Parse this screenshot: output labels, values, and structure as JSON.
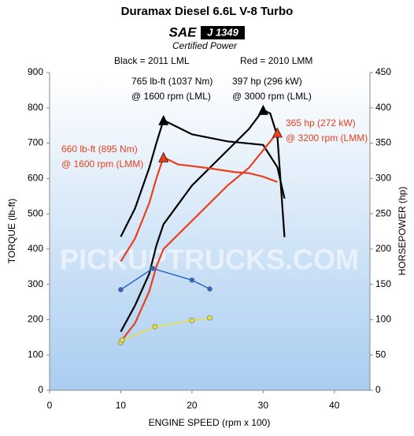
{
  "chart_data": {
    "type": "line",
    "title": "Duramax Diesel 6.6L V-8 Turbo",
    "logo": {
      "brand": "SAE",
      "code": "J 1349",
      "caption": "Certified Power"
    },
    "subtitles": [
      "Black = 2011 LML",
      "Red = 2010 LMM"
    ],
    "watermark": "PICKUPTRUCKS.COM",
    "xlabel": "ENGINE SPEED (rpm x 100)",
    "ylabel": "TORQUE (lb-ft)",
    "y2label": "HORSEPOWER (hp)",
    "xlim": [
      0,
      45
    ],
    "xticks": [
      0,
      10,
      20,
      30,
      40
    ],
    "ylim": [
      0,
      900
    ],
    "yticks": [
      0,
      100,
      200,
      300,
      400,
      500,
      600,
      700,
      800,
      900
    ],
    "y2lim": [
      0,
      450
    ],
    "y2ticks": [
      0,
      50,
      100,
      150,
      200,
      250,
      300,
      350,
      400,
      450
    ],
    "series": [
      {
        "color": "#000000",
        "peak_marker": true,
        "x": [
          10,
          12,
          14,
          15,
          16,
          18,
          20,
          25,
          30,
          32,
          33
        ],
        "values": [
          435,
          515,
          630,
          700,
          765,
          745,
          725,
          705,
          695,
          632,
          543
        ]
      },
      {
        "color": "#000000",
        "axis": "y2",
        "peak_marker": true,
        "x": [
          10,
          12,
          14,
          15,
          16,
          20,
          25,
          28,
          30,
          31,
          32,
          33
        ],
        "values": [
          83,
          120,
          165,
          205,
          235,
          290,
          340,
          370,
          397,
          392,
          360,
          217
        ]
      },
      {
        "color": "#e8401c",
        "peak_marker": true,
        "x": [
          10,
          12,
          14,
          15,
          16,
          18,
          22,
          26,
          28,
          30,
          32
        ],
        "values": [
          365,
          430,
          530,
          600,
          660,
          640,
          630,
          618,
          615,
          605,
          590
        ]
      },
      {
        "color": "#e8401c",
        "axis": "y2",
        "peak_marker": true,
        "x": [
          10,
          12,
          14,
          15,
          16,
          20,
          25,
          28,
          30,
          32
        ],
        "values": [
          69,
          95,
          140,
          175,
          200,
          240,
          290,
          315,
          340,
          365
        ]
      },
      {
        "color": "#2a64c8",
        "marker": "circle",
        "x": [
          10,
          14.5,
          20,
          22.5
        ],
        "values": [
          285,
          345,
          312,
          287
        ]
      },
      {
        "color": "#e6e23a",
        "marker": "circle",
        "x": [
          10,
          10.2,
          14.8,
          20,
          22.5
        ],
        "values": [
          135,
          142,
          180,
          198,
          205
        ]
      }
    ],
    "annotations": [
      {
        "color": "#000000",
        "lines": [
          "765 lb-ft (1037 Nm)",
          "@ 1600 rpm (LML)"
        ]
      },
      {
        "color": "#000000",
        "lines": [
          "397 hp (296 kW)",
          "@ 3000 rpm (LML)"
        ]
      },
      {
        "color": "#e8401c",
        "lines": [
          "365 hp (272 kW)",
          "@ 3200 rpm (LMM)"
        ]
      },
      {
        "color": "#e8401c",
        "lines": [
          "660 lb-ft (895 Nm)",
          "@ 1600 rpm (LMM)"
        ]
      }
    ]
  }
}
